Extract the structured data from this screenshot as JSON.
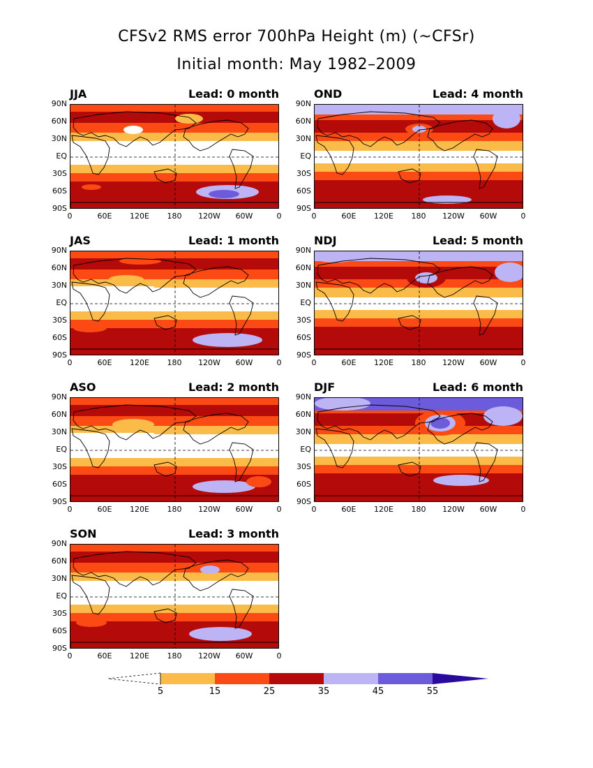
{
  "title_line1": "CFSv2 RMS error 700hPa Height (m) (~CFSr)",
  "title_line2": "Initial month: May 1982–2009",
  "lat_labels": [
    "90N",
    "60N",
    "30N",
    "EQ",
    "30S",
    "60S",
    "90S"
  ],
  "lon_labels": [
    "0",
    "60E",
    "120E",
    "180",
    "120W",
    "60W",
    "0"
  ],
  "panels": [
    {
      "season": "JJA",
      "lead": "Lead: 0 month"
    },
    {
      "season": "OND",
      "lead": "Lead: 4 month"
    },
    {
      "season": "JAS",
      "lead": "Lead: 1 month"
    },
    {
      "season": "NDJ",
      "lead": "Lead: 5 month"
    },
    {
      "season": "ASO",
      "lead": "Lead: 2 month"
    },
    {
      "season": "DJF",
      "lead": "Lead: 6 month"
    },
    {
      "season": "SON",
      "lead": "Lead: 3 month"
    }
  ],
  "colorbar": {
    "labels": [
      "5",
      "15",
      "25",
      "35",
      "45",
      "55"
    ],
    "colors": [
      "#ffffff",
      "#fbbb48",
      "#fb4a14",
      "#b40a0a",
      "#bcb4f4",
      "#6c5cdc",
      "#2a0a9c"
    ]
  },
  "fill_colors": {
    "white": "#ffffff",
    "orange": "#fbbb48",
    "red": "#fb4a14",
    "darkred": "#b40a0a",
    "lavender": "#bcb4f4",
    "purple": "#6c5cdc"
  }
}
